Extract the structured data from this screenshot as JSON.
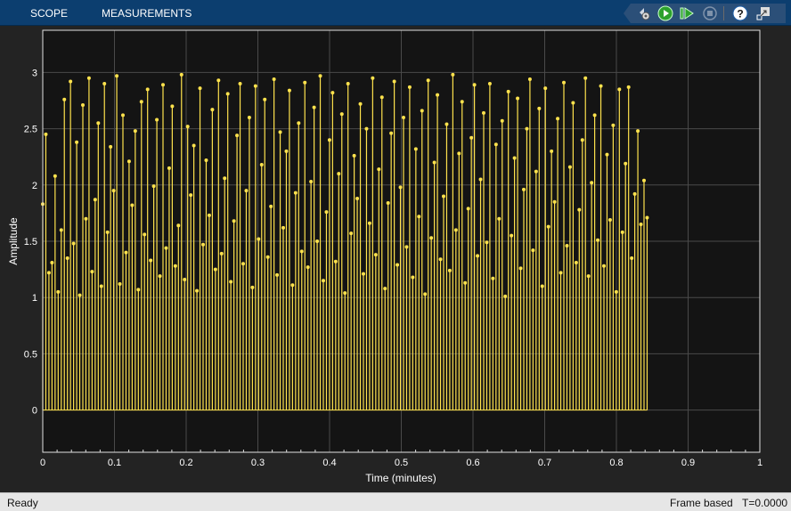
{
  "toolbar": {
    "tabs": [
      "SCOPE",
      "MEASUREMENTS"
    ],
    "icons": [
      "settings-icon",
      "run-icon",
      "step-forward-icon",
      "stop-icon",
      "help-icon",
      "undock-icon"
    ]
  },
  "status": {
    "state": "Ready",
    "mode": "Frame based",
    "time": "T=0.0000"
  },
  "colors": {
    "accent": "#0c3e6f",
    "trace": "#ffe34d",
    "axes_bg": "#141414",
    "grid": "#4a4a4a"
  },
  "chart_data": {
    "type": "stem",
    "xlabel": "Time (minutes)",
    "ylabel": "Amplitude",
    "xlim": [
      0,
      1
    ],
    "ylim": [
      -0.375,
      3.375
    ],
    "xticks": [
      "0",
      "0.1",
      "0.2",
      "0.3",
      "0.4",
      "0.5",
      "0.6",
      "0.7",
      "0.8",
      "0.9",
      "1"
    ],
    "yticks": [
      "0",
      "0.5",
      "1",
      "1.5",
      "2",
      "2.5",
      "3"
    ],
    "grid": true,
    "x_start": 0,
    "x_step": 0.0043,
    "values": [
      1.83,
      2.45,
      1.22,
      1.31,
      2.08,
      1.05,
      1.6,
      2.76,
      1.35,
      2.92,
      1.48,
      2.38,
      1.02,
      2.71,
      1.7,
      2.95,
      1.23,
      1.87,
      2.55,
      1.1,
      2.9,
      1.58,
      2.34,
      1.95,
      2.97,
      1.12,
      2.62,
      1.4,
      2.21,
      1.82,
      2.48,
      1.07,
      2.74,
      1.56,
      2.85,
      1.33,
      1.99,
      2.58,
      1.19,
      2.89,
      1.44,
      2.15,
      2.7,
      1.28,
      1.64,
      2.98,
      1.16,
      2.52,
      1.91,
      2.35,
      1.06,
      2.86,
      1.47,
      2.22,
      1.73,
      2.67,
      1.25,
      2.93,
      1.39,
      2.06,
      2.81,
      1.14,
      1.68,
      2.44,
      2.9,
      1.3,
      1.95,
      2.6,
      1.09,
      2.88,
      1.52,
      2.18,
      2.76,
      1.36,
      1.81,
      2.94,
      1.2,
      2.47,
      1.62,
      2.3,
      2.84,
      1.11,
      1.93,
      2.55,
      1.41,
      2.91,
      1.27,
      2.03,
      2.69,
      1.5,
      2.97,
      1.15,
      1.76,
      2.4,
      2.82,
      1.32,
      2.1,
      2.63,
      1.04,
      2.9,
      1.57,
      2.26,
      1.88,
      2.72,
      1.21,
      2.5,
      1.66,
      2.95,
      1.38,
      2.14,
      2.78,
      1.08,
      1.84,
      2.46,
      2.92,
      1.29,
      1.98,
      2.6,
      1.45,
      2.87,
      1.18,
      2.32,
      1.72,
      2.66,
      1.03,
      2.93,
      1.53,
      2.2,
      2.8,
      1.34,
      1.9,
      2.54,
      1.24,
      2.98,
      1.6,
      2.28,
      2.74,
      1.13,
      1.79,
      2.42,
      2.89,
      1.37,
      2.05,
      2.64,
      1.49,
      2.9,
      1.17,
      2.36,
      1.7,
      2.57,
      1.01,
      2.83,
      1.55,
      2.24,
      2.77,
      1.26,
      1.96,
      2.5,
      2.94,
      1.42,
      2.12,
      2.68,
      1.1,
      2.86,
      1.63,
      2.3,
      1.85,
      2.59,
      1.22,
      2.91,
      1.46,
      2.16,
      2.73,
      1.31,
      1.78,
      2.4,
      2.95,
      1.19,
      2.02,
      2.62,
      1.51,
      2.88,
      1.28,
      2.27,
      1.69,
      2.53,
      1.05,
      2.85,
      1.58,
      2.19,
      2.87,
      1.35,
      1.92,
      2.48,
      1.65,
      2.04,
      1.71
    ]
  }
}
